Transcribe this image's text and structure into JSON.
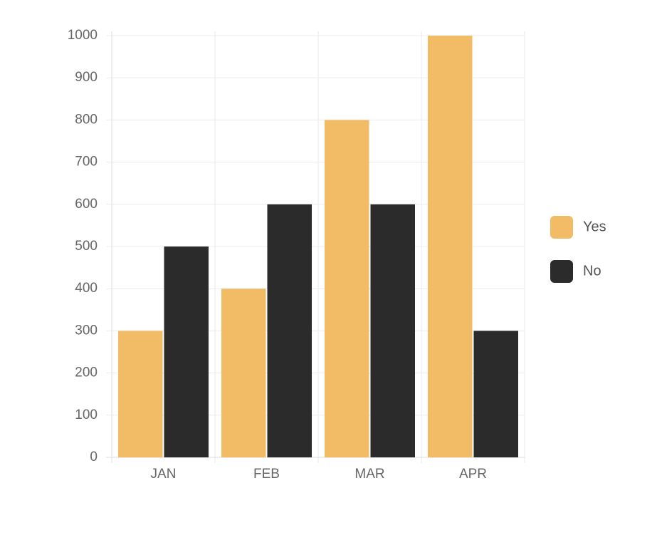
{
  "chart_data": {
    "type": "bar",
    "categories": [
      "JAN",
      "FEB",
      "MAR",
      "APR"
    ],
    "series": [
      {
        "name": "Yes",
        "color": "#f2bc66",
        "values": [
          300,
          400,
          800,
          1000
        ]
      },
      {
        "name": "No",
        "color": "#2b2b2b",
        "values": [
          500,
          600,
          600,
          300
        ]
      }
    ],
    "ylim": [
      0,
      1000
    ],
    "yticks": [
      0,
      100,
      200,
      300,
      400,
      500,
      600,
      700,
      800,
      900,
      1000
    ],
    "grid": true,
    "legend": "right"
  }
}
